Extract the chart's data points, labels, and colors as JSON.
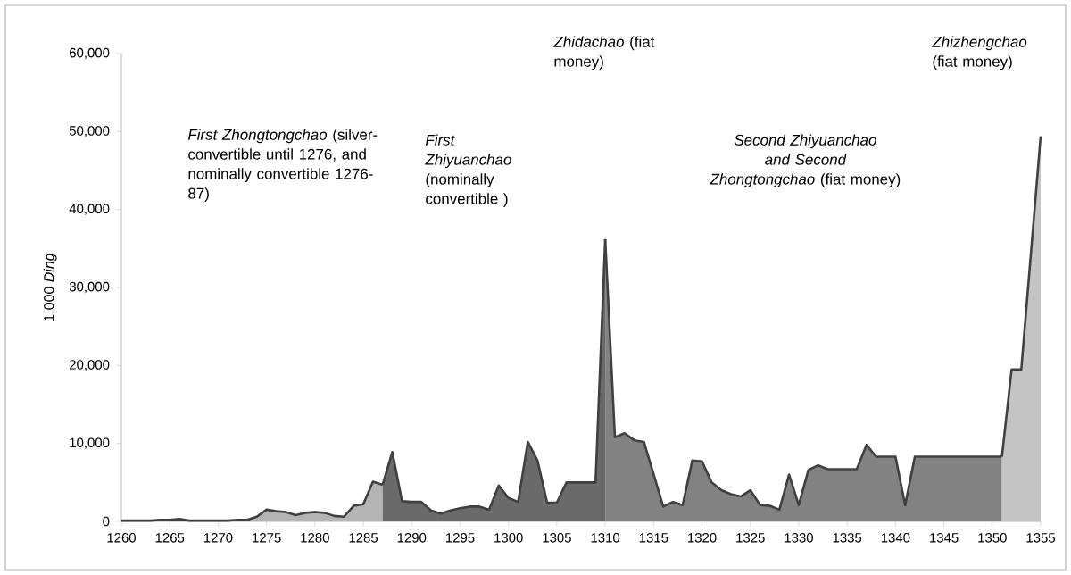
{
  "chart_data": {
    "type": "area",
    "ylabel": "1,000 *Ding*",
    "xlim": [
      1260,
      1355
    ],
    "xticks": [
      1260,
      1265,
      1270,
      1275,
      1280,
      1285,
      1290,
      1295,
      1300,
      1305,
      1310,
      1315,
      1320,
      1325,
      1330,
      1335,
      1340,
      1345,
      1350,
      1355
    ],
    "ylim": [
      0,
      60000
    ],
    "yticks": [
      {
        "value": 0,
        "label": "0"
      },
      {
        "value": 10000,
        "label": "10,000"
      },
      {
        "value": 20000,
        "label": "20,000"
      },
      {
        "value": 30000,
        "label": "30,000"
      },
      {
        "value": 40000,
        "label": "40,000"
      },
      {
        "value": 50000,
        "label": "50,000"
      },
      {
        "value": 60000,
        "label": "60,000"
      }
    ],
    "annotations": [
      "*First Zhongtongchao* (silver-convertible until 1276, and nominally convertible 1276-87)",
      "*First Zhiyuanchao* (nominally convertible )",
      "*Zhidachao* (fiat money)",
      "*Second Zhiyuanchao and Second Zhongtongchao* (fiat money)",
      "*Zhizhengchao* (fiat money)"
    ],
    "series": [
      {
        "color": "#b4b4b4",
        "x": [
          1260,
          1261,
          1262,
          1263,
          1264,
          1265,
          1266,
          1267,
          1268,
          1269,
          1270,
          1271,
          1272,
          1273,
          1274,
          1275,
          1276,
          1277,
          1278,
          1279,
          1280,
          1281,
          1282,
          1283,
          1284,
          1285,
          1286,
          1287
        ],
        "values": [
          100,
          100,
          100,
          100,
          200,
          200,
          300,
          100,
          100,
          100,
          100,
          100,
          200,
          200,
          600,
          1500,
          1300,
          1200,
          800,
          1100,
          1200,
          1100,
          700,
          600,
          2000,
          2200,
          5100,
          4700
        ]
      },
      {
        "color": "#6a6a6a",
        "x": [
          1287,
          1288,
          1289,
          1290,
          1291,
          1292,
          1293,
          1294,
          1295,
          1296,
          1297,
          1298,
          1299,
          1300,
          1301,
          1302,
          1303,
          1304,
          1305,
          1306,
          1307,
          1308,
          1309,
          1310
        ],
        "values": [
          4700,
          8900,
          2600,
          2500,
          2500,
          1400,
          1000,
          1400,
          1700,
          1900,
          1900,
          1500,
          4600,
          3000,
          2500,
          10200,
          7800,
          2400,
          2400,
          5000,
          5000,
          5000,
          5000,
          36200
        ]
      },
      {
        "color": "#828282",
        "x": [
          1310,
          1311,
          1312,
          1313,
          1314,
          1316,
          1317,
          1318,
          1319,
          1320,
          1321,
          1322,
          1323,
          1324,
          1325,
          1326,
          1327,
          1328,
          1329,
          1330,
          1331,
          1332,
          1333,
          1336,
          1337,
          1338,
          1340,
          1341,
          1342,
          1351
        ],
        "values": [
          36200,
          10800,
          11300,
          10400,
          10200,
          1900,
          2500,
          2100,
          7800,
          7700,
          5000,
          4000,
          3500,
          3200,
          4000,
          2100,
          2000,
          1500,
          6000,
          2100,
          6600,
          7200,
          6700,
          6700,
          9800,
          8300,
          8300,
          2100,
          8300,
          8300
        ]
      },
      {
        "color": "#c4c4c4",
        "x": [
          1351,
          1352,
          1353,
          1355
        ],
        "values": [
          8300,
          19500,
          19500,
          49400
        ]
      }
    ]
  }
}
